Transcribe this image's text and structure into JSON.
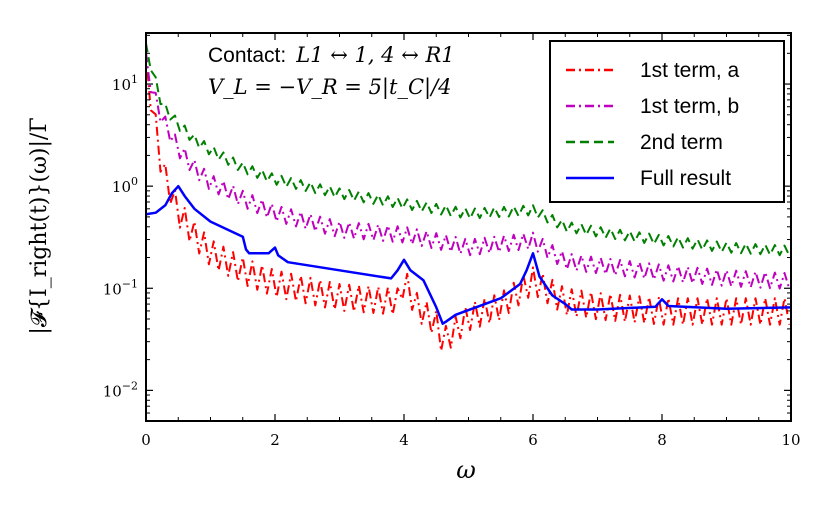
{
  "chart_data": {
    "type": "line",
    "title": "",
    "xlabel": "ω",
    "ylabel": "|𝓕{I_right(t)}(ω)|/Γ",
    "xlim": [
      0,
      10
    ],
    "ylim_log10": [
      -2.3,
      1.5
    ],
    "yscale": "log",
    "x_ticks": [
      0,
      2,
      4,
      6,
      8,
      10
    ],
    "x_tick_labels": [
      "0",
      "2",
      "4",
      "6",
      "8",
      "10"
    ],
    "y_ticks": [
      0.01,
      0.1,
      1,
      10
    ],
    "y_tick_labels": [
      {
        "base": "10",
        "exp": "−2"
      },
      {
        "base": "10",
        "exp": "−1"
      },
      {
        "base": "10",
        "exp": "0"
      },
      {
        "base": "10",
        "exp": "1"
      }
    ],
    "annotation_line1_text": "Contact:",
    "annotation_line1_math": "L1 ↔ 1, 4 ↔ R1",
    "annotation_line2_math": "V_L = −V_R = 5|t_C|/4",
    "legend_position": "top-right",
    "series": [
      {
        "name": "1st term, a",
        "color": "#ff0000",
        "style": "dashdot",
        "x": [
          0,
          0.1,
          0.25,
          0.5,
          0.75,
          1.0,
          1.5,
          2.0,
          3.0,
          3.9,
          4.0,
          4.2,
          4.5,
          4.6,
          5.0,
          5.5,
          6.0,
          6.5,
          7.0,
          8.0,
          9.0,
          10.0
        ],
        "values": [
          20,
          8,
          2.0,
          0.75,
          0.45,
          0.3,
          0.2,
          0.15,
          0.11,
          0.1,
          0.16,
          0.09,
          0.06,
          0.04,
          0.07,
          0.09,
          0.16,
          0.1,
          0.09,
          0.08,
          0.08,
          0.08
        ],
        "oscillation_low_factor": 0.55
      },
      {
        "name": "1st term, b",
        "color": "#bf00bf",
        "style": "dashdot",
        "x": [
          0,
          0.1,
          0.25,
          0.5,
          0.75,
          1.0,
          1.5,
          2.0,
          3.0,
          4.0,
          5.0,
          6.0,
          6.5,
          7.0,
          8.0,
          9.0,
          10.0
        ],
        "values": [
          20,
          10,
          5.5,
          2.8,
          1.8,
          1.3,
          0.9,
          0.65,
          0.45,
          0.4,
          0.3,
          0.35,
          0.22,
          0.2,
          0.17,
          0.15,
          0.14
        ],
        "oscillation_low_factor": 0.7
      },
      {
        "name": "2nd term",
        "color": "#008000",
        "style": "dashed",
        "x": [
          0,
          0.1,
          0.25,
          0.5,
          0.75,
          1.0,
          1.5,
          2.0,
          3.0,
          4.0,
          5.0,
          6.0,
          6.5,
          7.0,
          8.0,
          9.0,
          10.0
        ],
        "values": [
          25,
          15,
          7,
          4.5,
          3.2,
          2.5,
          1.7,
          1.3,
          0.95,
          0.75,
          0.6,
          0.65,
          0.45,
          0.4,
          0.33,
          0.28,
          0.26
        ],
        "oscillation_low_factor": 0.8
      },
      {
        "name": "Full result",
        "color": "#0000ff",
        "style": "solid",
        "x": [
          0,
          0.15,
          0.3,
          0.4,
          0.5,
          0.6,
          0.75,
          1.0,
          1.5,
          1.55,
          1.6,
          1.9,
          2.0,
          2.05,
          2.2,
          3.0,
          3.8,
          3.9,
          4.0,
          4.1,
          4.3,
          4.5,
          4.6,
          4.65,
          4.8,
          5.5,
          5.8,
          5.9,
          6.0,
          6.1,
          6.3,
          6.5,
          6.6,
          7.0,
          7.9,
          8.0,
          8.1,
          9.0,
          10.0
        ],
        "values": [
          0.53,
          0.55,
          0.65,
          0.85,
          1.0,
          0.8,
          0.6,
          0.45,
          0.32,
          0.24,
          0.22,
          0.22,
          0.25,
          0.21,
          0.18,
          0.15,
          0.125,
          0.15,
          0.19,
          0.15,
          0.12,
          0.065,
          0.045,
          0.047,
          0.055,
          0.08,
          0.11,
          0.15,
          0.22,
          0.13,
          0.085,
          0.07,
          0.062,
          0.062,
          0.066,
          0.078,
          0.067,
          0.063,
          0.065
        ]
      }
    ]
  }
}
